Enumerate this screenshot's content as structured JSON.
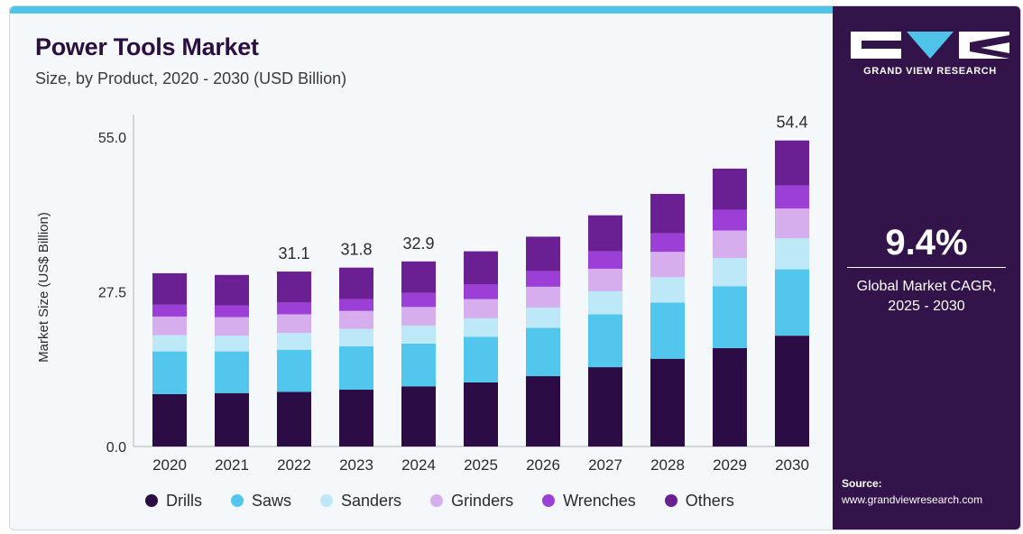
{
  "header": {
    "title": "Power Tools Market",
    "subtitle": "Size, by Product, 2020 - 2030 (USD Billion)"
  },
  "brand": {
    "name": "GRAND VIEW RESEARCH"
  },
  "side": {
    "cagr_value": "9.4%",
    "cagr_line1": "Global Market CAGR,",
    "cagr_line2": "2025 - 2030",
    "source_label": "Source:",
    "source_url": "www.grandviewresearch.com"
  },
  "colors": {
    "accent_bar": "#4fc3e8",
    "panel": "#32144a",
    "title": "#2b0f40"
  },
  "chart_data": {
    "type": "bar",
    "stacked": true,
    "title": "Power Tools Market",
    "subtitle": "Size, by Product, 2020 - 2030 (USD Billion)",
    "xlabel": "",
    "ylabel": "Market Size (US$ Billion)",
    "ylim": [
      0,
      55
    ],
    "yticks": [
      0,
      27.5,
      55
    ],
    "ytick_labels": [
      "0.0",
      "27.5",
      "55.0"
    ],
    "grid": false,
    "legend_position": "bottom",
    "categories": [
      "2020",
      "2021",
      "2022",
      "2023",
      "2024",
      "2025",
      "2026",
      "2027",
      "2028",
      "2029",
      "2030"
    ],
    "series": [
      {
        "name": "Drills",
        "color": "#2c0c45",
        "values": [
          9.3,
          9.5,
          9.7,
          10.1,
          10.7,
          11.4,
          12.5,
          14.1,
          15.6,
          17.5,
          19.7
        ]
      },
      {
        "name": "Saws",
        "color": "#52c6ec",
        "values": [
          7.6,
          7.4,
          7.5,
          7.7,
          7.6,
          8.1,
          8.6,
          9.4,
          10.0,
          11.0,
          11.8
        ]
      },
      {
        "name": "Sanders",
        "color": "#bde8f8",
        "values": [
          2.9,
          2.8,
          3.0,
          3.1,
          3.2,
          3.3,
          3.6,
          4.1,
          4.5,
          5.0,
          5.5
        ]
      },
      {
        "name": "Grinders",
        "color": "#d6aeee",
        "values": [
          3.3,
          3.3,
          3.3,
          3.2,
          3.3,
          3.4,
          3.7,
          4.0,
          4.5,
          4.9,
          5.3
        ]
      },
      {
        "name": "Wrenches",
        "color": "#9c3fd6",
        "values": [
          2.1,
          2.1,
          2.1,
          2.1,
          2.5,
          2.6,
          2.8,
          3.1,
          3.3,
          3.7,
          4.1
        ]
      },
      {
        "name": "Others",
        "color": "#6a1f93",
        "values": [
          5.6,
          5.4,
          5.5,
          5.6,
          5.6,
          5.9,
          6.1,
          6.4,
          7.0,
          7.3,
          8.0
        ]
      }
    ],
    "totals": [
      30.8,
      30.5,
      31.1,
      31.8,
      32.9,
      34.7,
      37.3,
      41.1,
      44.9,
      49.4,
      54.4
    ],
    "data_labels": [
      {
        "category": "2022",
        "text": "31.1"
      },
      {
        "category": "2023",
        "text": "31.8"
      },
      {
        "category": "2024",
        "text": "32.9"
      },
      {
        "category": "2030",
        "text": "54.4"
      }
    ]
  }
}
